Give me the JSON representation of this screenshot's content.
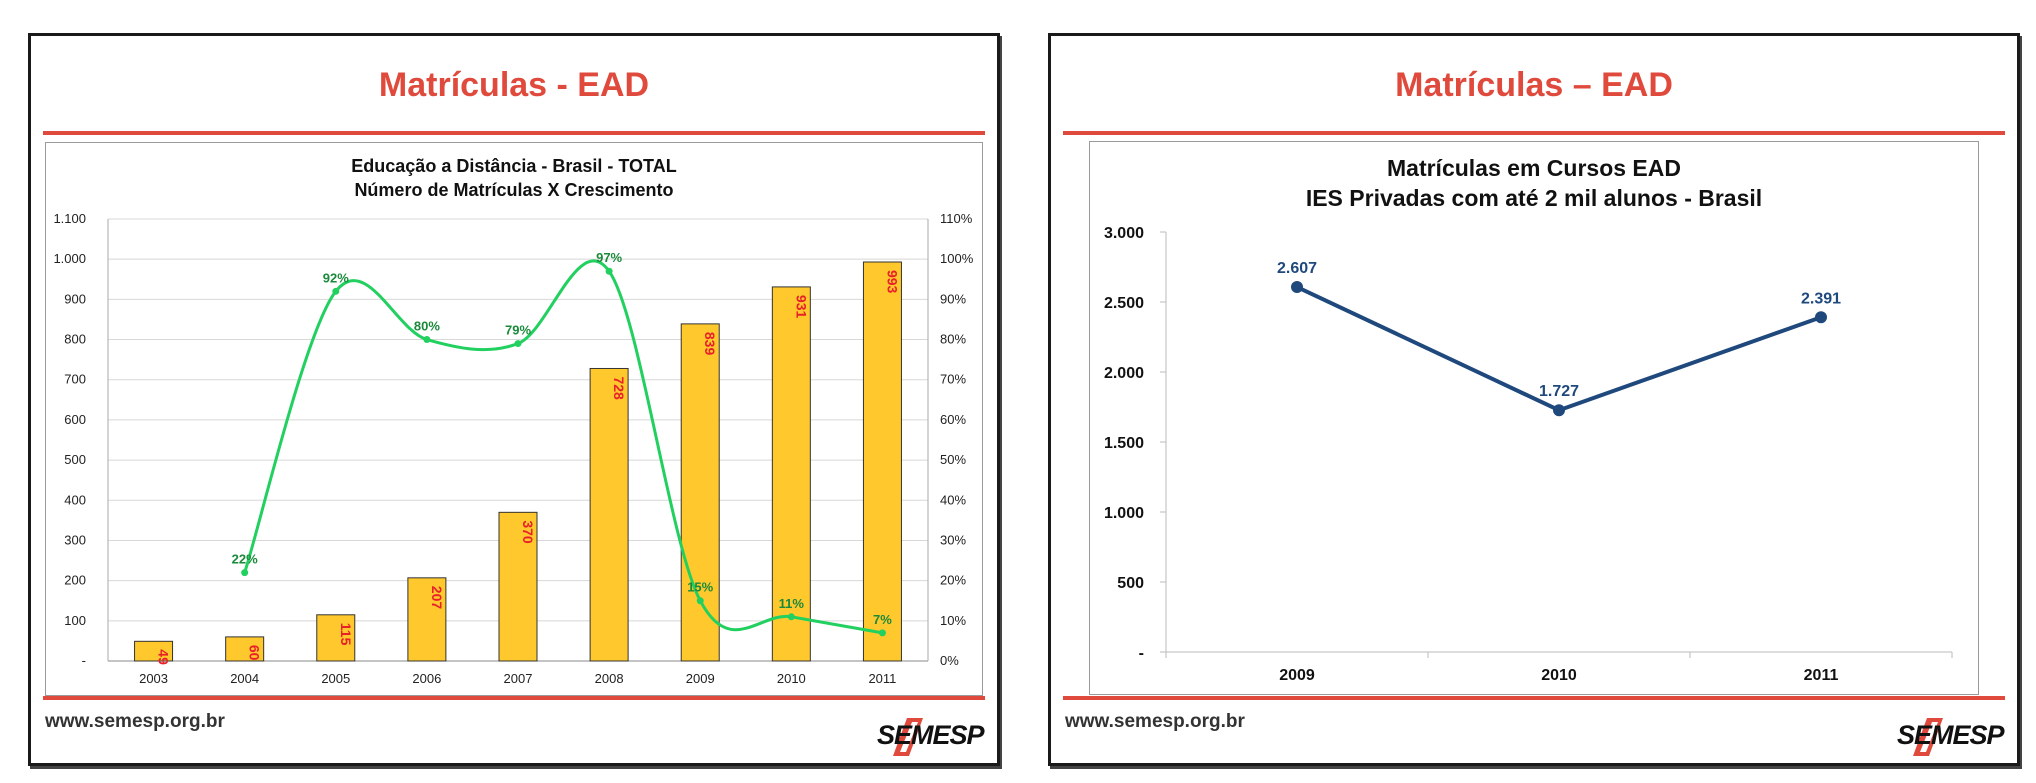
{
  "left_slide": {
    "title": "Matrículas - EAD",
    "website": "www.semesp.org.br",
    "logo": "SEMESP"
  },
  "right_slide": {
    "title": "Matrículas – EAD",
    "website": "www.semesp.org.br",
    "logo": "SEMESP"
  },
  "colors": {
    "accent_red": "#e04a3c",
    "bar_fill": "#ffc82c",
    "growth_line": "#22d060",
    "growth_label": "#1a8a3a",
    "bar_label": "#e8202a",
    "navy_line": "#1f497d"
  },
  "chart_data": [
    {
      "type": "bar",
      "title": "Educação a Distância - Brasil - TOTAL",
      "subtitle": "Número de Matrículas X Crescimento",
      "categories": [
        "2003",
        "2004",
        "2005",
        "2006",
        "2007",
        "2008",
        "2009",
        "2010",
        "2011"
      ],
      "series": [
        {
          "name": "Matrículas",
          "type": "bar",
          "values": [
            49,
            60,
            115,
            207,
            370,
            728,
            839,
            931,
            993
          ],
          "labels": [
            "49",
            "60",
            "115",
            "207",
            "370",
            "728",
            "839",
            "931",
            "993"
          ]
        },
        {
          "name": "Crescimento",
          "type": "line",
          "axis": "right",
          "x": [
            "2004",
            "2005",
            "2006",
            "2007",
            "2008",
            "2009",
            "2010",
            "2011"
          ],
          "values": [
            22,
            92,
            80,
            79,
            97,
            15,
            11,
            7
          ],
          "labels": [
            "22%",
            "92%",
            "80%",
            "79%",
            "97%",
            "15%",
            "11%",
            "7%"
          ]
        }
      ],
      "ylim": [
        0,
        1100
      ],
      "yticks": [
        "-",
        "100",
        "200",
        "300",
        "400",
        "500",
        "600",
        "700",
        "800",
        "900",
        "1.000",
        "1.100"
      ],
      "y2lim": [
        0,
        110
      ],
      "y2ticks": [
        "0%",
        "10%",
        "20%",
        "30%",
        "40%",
        "50%",
        "60%",
        "70%",
        "80%",
        "90%",
        "100%",
        "110%"
      ],
      "grid": true
    },
    {
      "type": "line",
      "title": "Matrículas em Cursos EAD",
      "subtitle": "IES Privadas com até 2 mil alunos - Brasil",
      "x": [
        "2009",
        "2010",
        "2011"
      ],
      "values": [
        2607,
        1727,
        2391
      ],
      "labels": [
        "2.607",
        "1.727",
        "2.391"
      ],
      "ylim": [
        0,
        3000
      ],
      "yticks": [
        "-",
        "500",
        "1.000",
        "1.500",
        "2.000",
        "2.500",
        "3.000"
      ],
      "grid": false
    }
  ]
}
